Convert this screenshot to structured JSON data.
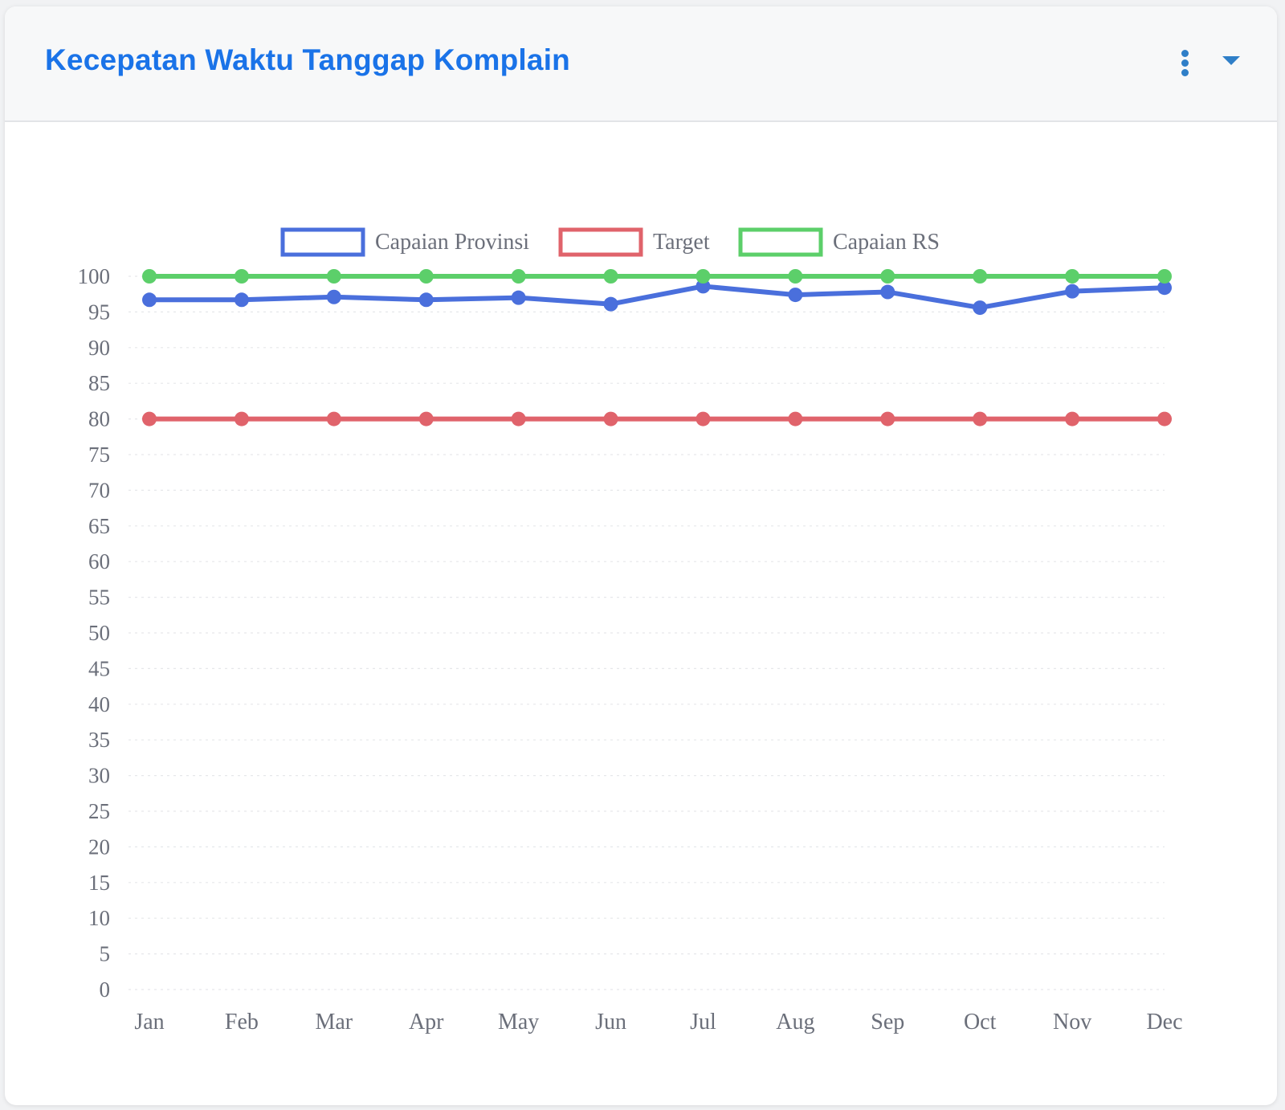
{
  "header": {
    "title": "Kecepatan Waktu Tanggap Komplain",
    "menu_icon": "more-vertical-icon",
    "collapse_icon": "caret-down-icon",
    "accent_color": "#1a73e8"
  },
  "chart_data": {
    "type": "line",
    "title": "",
    "xlabel": "",
    "ylabel": "",
    "categories": [
      "Jan",
      "Feb",
      "Mar",
      "Apr",
      "May",
      "Jun",
      "Jul",
      "Aug",
      "Sep",
      "Oct",
      "Nov",
      "Dec"
    ],
    "ylim": [
      0,
      100
    ],
    "yticks": [
      0,
      5,
      10,
      15,
      20,
      25,
      30,
      35,
      40,
      45,
      50,
      55,
      60,
      65,
      70,
      75,
      80,
      85,
      90,
      95,
      100
    ],
    "grid": true,
    "legend_position": "top",
    "series": [
      {
        "name": "Capaian Provinsi",
        "color": "#4a6fdc",
        "values": [
          96.7,
          96.7,
          97.1,
          96.7,
          97.0,
          96.1,
          98.6,
          97.4,
          97.8,
          95.6,
          97.9,
          98.4
        ]
      },
      {
        "name": "Target",
        "color": "#e0636b",
        "values": [
          80,
          80,
          80,
          80,
          80,
          80,
          80,
          80,
          80,
          80,
          80,
          80
        ]
      },
      {
        "name": "Capaian RS",
        "color": "#5ccf6a",
        "values": [
          100,
          100,
          100,
          100,
          100,
          100,
          100,
          100,
          100,
          100,
          100,
          100
        ]
      }
    ]
  }
}
